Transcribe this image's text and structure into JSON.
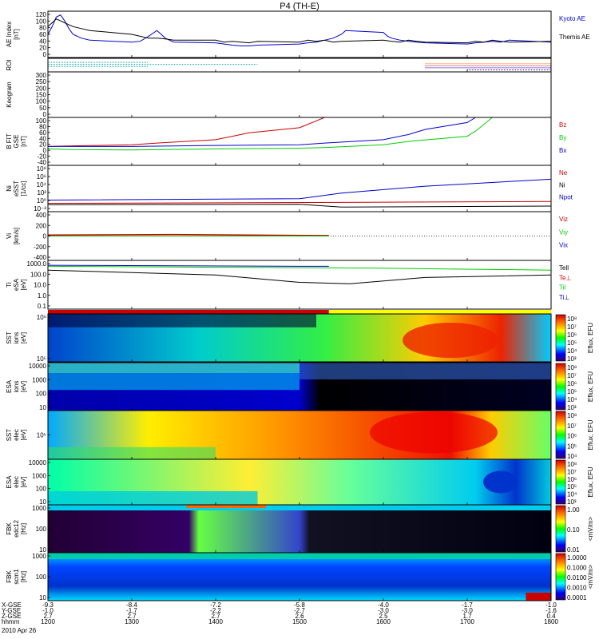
{
  "title": "P4 (TH-E)",
  "date": "2010 Apr 26",
  "chart_data": [
    {
      "type": "line",
      "panel": "ae",
      "ylabel": [
        "AE Index",
        "[nT]"
      ],
      "ylim": [
        0,
        120
      ],
      "yticks": [
        "120",
        "100",
        "80",
        "60",
        "40",
        "20",
        "0"
      ],
      "legend": [
        {
          "name": "Kyoto AE",
          "color": "#0000cc"
        },
        {
          "name": "Themis AE",
          "color": "#000000"
        }
      ],
      "series": [
        {
          "name": "Kyoto AE",
          "color": "#0000cc",
          "x": [
            1200,
            1205,
            1210,
            1215,
            1220,
            1225,
            1230,
            1240,
            1250,
            1300,
            1310,
            1320,
            1330,
            1335,
            1340,
            1345,
            1350,
            1400,
            1410,
            1420,
            1430,
            1440,
            1450,
            1500,
            1510,
            1520,
            1530,
            1540,
            1550,
            1555,
            1600,
            1605,
            1610,
            1620,
            1630,
            1640,
            1650,
            1700,
            1710,
            1720,
            1730,
            1740,
            1750,
            1800
          ],
          "y": [
            60,
            80,
            105,
            110,
            95,
            75,
            60,
            50,
            45,
            40,
            42,
            55,
            70,
            60,
            50,
            45,
            40,
            38,
            35,
            32,
            30,
            30,
            32,
            35,
            38,
            40,
            45,
            50,
            60,
            70,
            65,
            55,
            50,
            45,
            42,
            40,
            38,
            35,
            38,
            40,
            42,
            40,
            45,
            40
          ]
        },
        {
          "name": "Themis AE",
          "color": "#000000",
          "x": [
            1200,
            1205,
            1210,
            1215,
            1220,
            1225,
            1230,
            1240,
            1250,
            1300,
            1310,
            1320,
            1330,
            1340,
            1350,
            1400,
            1410,
            1420,
            1430,
            1440,
            1450,
            1500,
            1510,
            1520,
            1530,
            1540,
            1550,
            1600,
            1610,
            1620,
            1630,
            1640,
            1650,
            1700,
            1710,
            1720,
            1730,
            1740,
            1750,
            1800
          ],
          "y": [
            80,
            90,
            100,
            95,
            90,
            85,
            80,
            75,
            70,
            60,
            55,
            50,
            50,
            48,
            45,
            45,
            40,
            42,
            40,
            38,
            42,
            40,
            45,
            42,
            45,
            40,
            42,
            45,
            42,
            40,
            45,
            42,
            40,
            38,
            42,
            40,
            45,
            42,
            40,
            42
          ]
        }
      ]
    },
    {
      "type": "line",
      "panel": "roi",
      "ylabel": [
        "ROI"
      ],
      "segments": [
        {
          "x0": 1200,
          "x1": 1320,
          "y": 0.7,
          "color": "#00aaaa"
        },
        {
          "x0": 1200,
          "x1": 1450,
          "y": 0.55,
          "color": "#00aaaa"
        },
        {
          "x0": 1200,
          "x1": 1320,
          "y": 0.4,
          "color": "#00aaaa"
        },
        {
          "x0": 1650,
          "x1": 1800,
          "y": 0.6,
          "color": "#ff6600"
        },
        {
          "x0": 1650,
          "x1": 1800,
          "y": 0.45,
          "color": "#cc0000"
        },
        {
          "x0": 1650,
          "x1": 1800,
          "y": 0.3,
          "color": "#0000cc"
        },
        {
          "x0": 1700,
          "x1": 1800,
          "y": 0.15,
          "color": "#660066"
        }
      ]
    },
    {
      "type": "line",
      "panel": "keogram",
      "ylabel": [
        "Keogram"
      ],
      "ylim": [
        0,
        300
      ],
      "yticks": [
        "300",
        "250",
        "200",
        "150",
        "100",
        "50",
        "0"
      ]
    },
    {
      "type": "line",
      "panel": "bfgm",
      "ylabel": [
        "B FIT",
        "GSE",
        "[nT]"
      ],
      "ylim": [
        -40,
        100
      ],
      "yticks": [
        "100",
        "80",
        "60",
        "40",
        "20",
        "0",
        "-20",
        "-40"
      ],
      "legend": [
        {
          "name": "Bz",
          "color": "#cc0000"
        },
        {
          "name": "By",
          "color": "#00cc00"
        },
        {
          "name": "Bx",
          "color": "#0000cc"
        }
      ],
      "series": [
        {
          "name": "Bz",
          "color": "#cc0000",
          "x": [
            1200,
            1230,
            1300,
            1330,
            1400,
            1420,
            1440,
            1500,
            1510,
            1520,
            1530
          ],
          "y": [
            15,
            17,
            20,
            25,
            35,
            45,
            55,
            70,
            80,
            90,
            100
          ]
        },
        {
          "name": "By",
          "color": "#00cc00",
          "x": [
            1200,
            1230,
            1300,
            1400,
            1500,
            1530,
            1600,
            1630,
            1700,
            1710,
            1720,
            1730
          ],
          "y": [
            8,
            6,
            5,
            8,
            10,
            12,
            20,
            30,
            45,
            60,
            80,
            100
          ]
        },
        {
          "name": "Bx",
          "color": "#0000cc",
          "x": [
            1200,
            1300,
            1400,
            1500,
            1530,
            1600,
            1630,
            1650,
            1700,
            1710
          ],
          "y": [
            15,
            15,
            18,
            20,
            25,
            35,
            50,
            65,
            85,
            100
          ]
        }
      ]
    },
    {
      "type": "line",
      "panel": "ni",
      "ylabel": [
        "Ni",
        "eSST",
        "[1/cc]"
      ],
      "yticks": [
        "10⁸",
        "10⁶",
        "10⁴",
        "10²",
        "10⁰",
        "10⁻²"
      ],
      "legend": [
        {
          "name": "Ne",
          "color": "#cc0000"
        },
        {
          "name": "Ni",
          "color": "#000000"
        },
        {
          "name": "Npot",
          "color": "#0000cc"
        }
      ]
    },
    {
      "type": "line",
      "panel": "vi",
      "ylabel": [
        "Vi",
        "[km/s]"
      ],
      "ylim": [
        -400,
        400
      ],
      "yticks": [
        "400",
        "200",
        "0",
        "-200",
        "-400"
      ],
      "legend": [
        {
          "name": "Viz",
          "color": "#cc0000"
        },
        {
          "name": "Viy",
          "color": "#00cc00"
        },
        {
          "name": "Vix",
          "color": "#0000cc"
        }
      ]
    },
    {
      "type": "line",
      "panel": "ti",
      "ylabel": [
        "Ti",
        "eSA",
        "[eV]"
      ],
      "yticks": [
        "1000.0",
        "100.0",
        "10.0",
        "1.0",
        "0.1"
      ],
      "legend": [
        {
          "name": "Tell",
          "color": "#000000"
        },
        {
          "name": "Te⊥",
          "color": "#cc0000"
        },
        {
          "name": "Til",
          "color": "#00cc00"
        },
        {
          "name": "Ti⊥",
          "color": "#0000cc"
        }
      ]
    },
    {
      "type": "heatmap",
      "panel": "sst-i",
      "ylabel": [
        "SST",
        "ions",
        "[eV]"
      ],
      "yticks": [
        "10⁶",
        "10⁵"
      ],
      "colorbar_ticks": [
        "10⁸",
        "10⁷",
        "10⁶",
        "10⁵",
        "10⁴",
        "10³"
      ],
      "colorbar_label": "Eflux, EFU"
    },
    {
      "type": "heatmap",
      "panel": "esa-i",
      "ylabel": [
        "ESA",
        "ions",
        "[eV]"
      ],
      "yticks": [
        "10000",
        "1000",
        "100",
        "10"
      ],
      "colorbar_ticks": [
        "10⁸",
        "10⁷",
        "10⁶",
        "10⁵",
        "10⁴",
        "10³"
      ],
      "colorbar_label": "Eflux, EFU"
    },
    {
      "type": "heatmap",
      "panel": "sst-e",
      "ylabel": [
        "SST",
        "elec",
        "[eV]"
      ],
      "yticks": [
        "10⁵"
      ],
      "colorbar_ticks": [
        "10⁸",
        "10⁷",
        "10⁶",
        "10⁵",
        "10⁴"
      ],
      "colorbar_label": "Eflux, EFU"
    },
    {
      "type": "heatmap",
      "panel": "esa-e",
      "ylabel": [
        "ESA",
        "elec",
        "[eV]"
      ],
      "yticks": [
        "10000",
        "1000",
        "100",
        "10"
      ],
      "colorbar_ticks": [
        "10⁸",
        "10⁷",
        "10⁶",
        "10⁵",
        "10⁴",
        "10³"
      ],
      "colorbar_label": "Eflux, EFU"
    },
    {
      "type": "heatmap",
      "panel": "fbk1",
      "ylabel": [
        "FBK",
        "edc12",
        "[Hz]"
      ],
      "yticks": [
        "1000",
        "100",
        "10"
      ],
      "colorbar_ticks": [
        "1.00",
        "0.10",
        "0.01"
      ],
      "colorbar_label": "<mV/m>"
    },
    {
      "type": "heatmap",
      "panel": "fbk2",
      "ylabel": [
        "FBK",
        "scm1",
        "[Hz]"
      ],
      "yticks": [
        "1000",
        "100",
        "10"
      ],
      "colorbar_ticks": [
        "1.0000",
        "0.1000",
        "0.0100",
        "0.0010",
        "0.0001"
      ],
      "colorbar_label": "<mV/m>"
    }
  ],
  "xaxis": {
    "row_labels": [
      "X-GSE",
      "Y-GSE",
      "Z-GSE",
      "hhmm"
    ],
    "columns": [
      {
        "x": [
          "-9.3",
          "-1.0",
          "2.7",
          "1200"
        ]
      },
      {
        "x": [
          "-8.4",
          "-1.7",
          "2.7",
          "1300"
        ]
      },
      {
        "x": [
          "-7.2",
          "-2.2",
          "2.7",
          "1400"
        ]
      },
      {
        "x": [
          "-5.8",
          "-2.7",
          "2.6",
          "1500"
        ]
      },
      {
        "x": [
          "-4.0",
          "-3.0",
          "2.5",
          "1600"
        ]
      },
      {
        "x": [
          "-1.7",
          "-3.0",
          "1.7",
          "1700"
        ]
      },
      {
        "x": [
          "-1.0",
          "-1.6",
          "0.4",
          "1800"
        ]
      }
    ]
  }
}
